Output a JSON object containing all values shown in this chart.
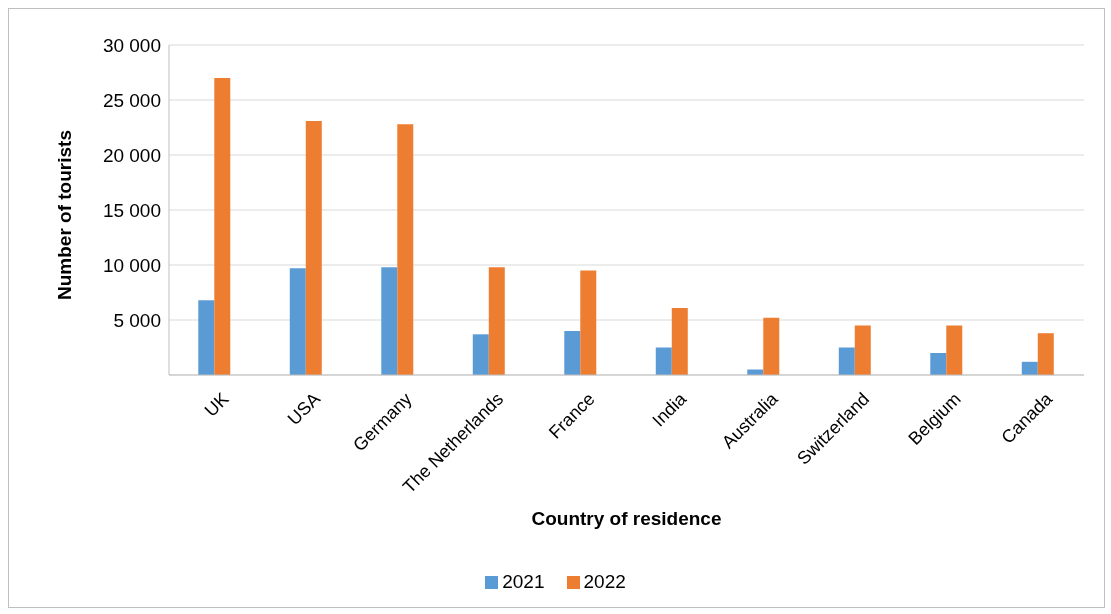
{
  "chart_data": {
    "type": "bar",
    "xlabel": "Country of residence",
    "ylabel": "Number of tourists",
    "categories": [
      "UK",
      "USA",
      "Germany",
      "The Netherlands",
      "France",
      "India",
      "Australia",
      "Switzerland",
      "Belgium",
      "Canada"
    ],
    "series": [
      {
        "name": "2021",
        "color": "#5b9bd5",
        "values": [
          6800,
          9700,
          9800,
          3700,
          4000,
          2500,
          500,
          2500,
          2000,
          1200
        ]
      },
      {
        "name": "2022",
        "color": "#ed7d31",
        "values": [
          27000,
          23100,
          22800,
          9800,
          9500,
          6100,
          5200,
          4500,
          4500,
          3800
        ]
      }
    ],
    "ylim": [
      0,
      30000
    ],
    "yticks": [
      {
        "value": 5000,
        "label": "5 000"
      },
      {
        "value": 10000,
        "label": "10 000"
      },
      {
        "value": 15000,
        "label": "15 000"
      },
      {
        "value": 20000,
        "label": "20 000"
      },
      {
        "value": 25000,
        "label": "25 000"
      },
      {
        "value": 30000,
        "label": "30 000"
      }
    ],
    "grid": "y",
    "legend": "bottom"
  }
}
